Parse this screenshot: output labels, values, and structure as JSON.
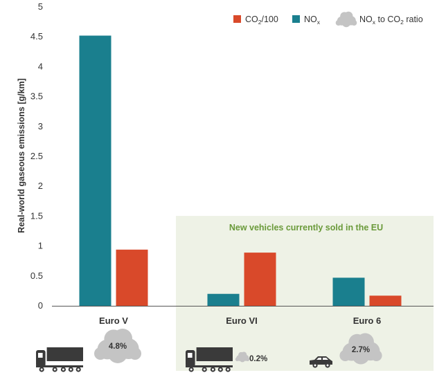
{
  "colors": {
    "co2": "#d9492a",
    "nox": "#1a7f8e",
    "cloud": "#c4c4c4",
    "panel": "#eef2e6",
    "panel_text": "#6a9a3a",
    "vehicle": "#3a3a3a"
  },
  "legend": {
    "co2": {
      "main": "CO",
      "sub": "2",
      "tail": "/100",
      "icon": "square-swatch"
    },
    "nox": {
      "main": "NO",
      "sub": "x",
      "tail": "",
      "icon": "square-swatch"
    },
    "ratio": {
      "main": "NO",
      "sub1": "x",
      "mid": " to CO",
      "sub2": "2",
      "tail": " ratio",
      "icon": "cloud-icon"
    }
  },
  "highlight_panel": {
    "label": "New vehicles currently sold in the EU"
  },
  "chart_data": {
    "type": "bar",
    "ylabel": "Real-world gaseous emissions [g/km]",
    "ylim": [
      0,
      5
    ],
    "yticks": [
      "0",
      "0.5",
      "1",
      "1.5",
      "2",
      "2.5",
      "3",
      "3.5",
      "4",
      "4.5",
      "5"
    ],
    "grid": false,
    "legend_position": "top-right",
    "categories": [
      "Euro V",
      "Euro VI",
      "Euro 6"
    ],
    "series": [
      {
        "name": "NOx",
        "values": [
          4.52,
          0.2,
          0.47
        ]
      },
      {
        "name": "CO2/100",
        "values": [
          0.94,
          0.89,
          0.17
        ]
      }
    ],
    "ratios": [
      "4.8%",
      "0.2%",
      "2.7%"
    ],
    "vehicle_icons": [
      "truck-icon",
      "truck-icon",
      "car-icon"
    ]
  }
}
